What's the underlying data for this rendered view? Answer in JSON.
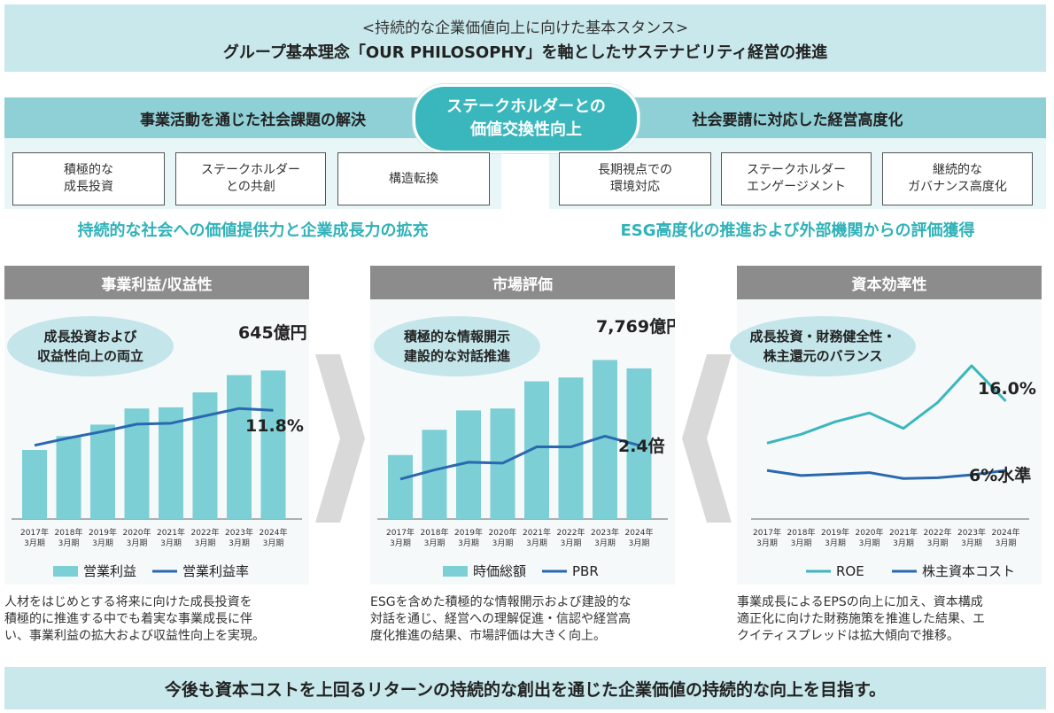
{
  "header": {
    "line1": "<持続的な企業価値向上に向けた基本スタンス>",
    "line2": "グループ基本理念「OUR PHILOSOPHY」を軸としたサステナビリティ経営の推進"
  },
  "left_band": "事業活動を通じた社会課題の解決",
  "right_band": "社会要請に対応した経営高度化",
  "center_pill": {
    "line1": "ステークホルダーとの",
    "line2": "価値交換性向上"
  },
  "left_boxes": [
    {
      "l1": "積極的な",
      "l2": "成長投資"
    },
    {
      "l1": "ステークホルダー",
      "l2": "との共創"
    },
    {
      "l1": "構造転換",
      "l2": ""
    }
  ],
  "right_boxes": [
    {
      "l1": "長期視点での",
      "l2": "環境対応"
    },
    {
      "l1": "ステークホルダー",
      "l2": "エンゲージメント"
    },
    {
      "l1": "継続的な",
      "l2": "ガバナンス高度化"
    }
  ],
  "left_result": "持続的な社会への価値提供力と企業成長力の拡充",
  "right_result": "ESG高度化の推進および外部機関からの評価獲得",
  "sections": [
    {
      "title": "事業利益/収益性",
      "bubble1": "成長投資および",
      "bubble2": "収益性向上の両立",
      "desc1": "人材をはじめとする将来に向けた成長投資を",
      "desc2": "積極的に推進する中でも着実な事業成長に伴",
      "desc3": "い、事業利益の拡大および収益性向上を実現。"
    },
    {
      "title": "市場評価",
      "bubble1": "積極的な情報開示",
      "bubble2": "建設的な対話推進",
      "desc1": "ESGを含めた積極的な情報開示および建設的な",
      "desc2": "対話を通じ、経営への理解促進・信認や経営高",
      "desc3": "度化推進の結果、市場評価は大きく向上。"
    },
    {
      "title": "資本効率性",
      "bubble1": "成長投資・財務健全性・",
      "bubble2": "株主還元のバランス",
      "desc1": "事業成長によるEPSの向上に加え、資本構成",
      "desc2": "適正化に向けた財務施策を推進した結果、エ",
      "desc3": "クイティスプレッドは拡大傾向で推移。"
    }
  ],
  "footer": "今後も資本コストを上回るリターンの持続的な創出を通じた企業価値の持続的な向上を目指す。",
  "colors": {
    "bar": "#7bcfd5",
    "line": "#2a68b0",
    "roe": "#3ab7bd",
    "header_bg": "#c8e8ec",
    "teal_text": "#2fb2b8"
  },
  "icons": [
    "chevron-right-arrow",
    "chevron-left-arrow"
  ],
  "chart_data": [
    {
      "type": "bar",
      "categories": [
        "2017年\n3月期",
        "2018年\n3月期",
        "2019年\n3月期",
        "2020年\n3月期",
        "2021年\n3月期",
        "2022年\n3月期",
        "2023年\n3月期",
        "2024年\n3月期"
      ],
      "series": [
        {
          "name": "営業利益",
          "kind": "bar",
          "values": [
            300,
            360,
            410,
            480,
            485,
            550,
            625,
            645
          ]
        },
        {
          "name": "営業利益率",
          "kind": "line",
          "values": [
            8.0,
            8.8,
            9.5,
            10.3,
            10.4,
            11.2,
            12.0,
            11.8
          ]
        }
      ],
      "annotations": [
        "645億円",
        "11.8%"
      ],
      "ylim": [
        0,
        800
      ],
      "ylim2": [
        0,
        20
      ]
    },
    {
      "type": "bar",
      "categories": [
        "2017年\n3月期",
        "2018年\n3月期",
        "2019年\n3月期",
        "2020年\n3月期",
        "2021年\n3月期",
        "2022年\n3月期",
        "2023年\n3月期",
        "2024年\n3月期"
      ],
      "series": [
        {
          "name": "時価総額",
          "kind": "bar",
          "values": [
            3300,
            4600,
            5600,
            5700,
            7100,
            7300,
            8200,
            7769
          ]
        },
        {
          "name": "PBR",
          "kind": "line",
          "values": [
            1.3,
            1.6,
            1.85,
            1.82,
            2.35,
            2.35,
            2.7,
            2.4
          ]
        }
      ],
      "annotations": [
        "7,769億円",
        "2.4倍"
      ],
      "ylim": [
        0,
        9500
      ],
      "ylim2": [
        0,
        6
      ]
    },
    {
      "type": "line",
      "categories": [
        "2017年\n3月期",
        "2018年\n3月期",
        "2019年\n3月期",
        "2020年\n3月期",
        "2021年\n3月期",
        "2022年\n3月期",
        "2023年\n3月期",
        "2024年\n3月期"
      ],
      "series": [
        {
          "name": "ROE",
          "values": [
            10.3,
            11.5,
            13.2,
            14.4,
            12.3,
            15.8,
            20.8,
            16.0
          ]
        },
        {
          "name": "株主資本コスト",
          "values": [
            6.6,
            5.9,
            6.1,
            6.3,
            5.5,
            5.6,
            6.0,
            6.6
          ]
        }
      ],
      "annotations": [
        "16.0%",
        "6%水準"
      ],
      "ylim": [
        0,
        25
      ]
    }
  ]
}
